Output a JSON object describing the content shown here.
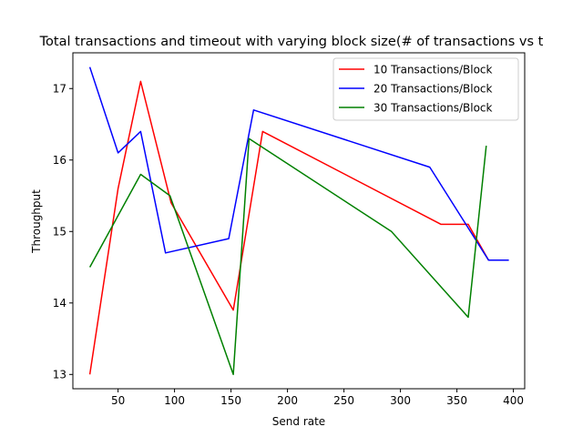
{
  "chart_data": {
    "type": "line",
    "title": "Total transactions and timeout with varying block size(# of transactions vs t",
    "xlabel": "Send rate",
    "ylabel": "Throughput",
    "xlim": [
      10,
      410
    ],
    "ylim": [
      12.8,
      17.5
    ],
    "xticks": [
      50,
      100,
      150,
      200,
      250,
      300,
      350,
      400
    ],
    "yticks": [
      13,
      14,
      15,
      16,
      17
    ],
    "grid": false,
    "legend_position": "upper-right",
    "series": [
      {
        "name": "10 Transactions/Block",
        "color": "#ff0000",
        "x": [
          25,
          50,
          70,
          97,
          152,
          178,
          336,
          360,
          378
        ],
        "y": [
          13.0,
          15.6,
          17.1,
          15.4,
          13.9,
          16.4,
          15.1,
          15.1,
          14.6
        ]
      },
      {
        "name": "20 Transactions/Block",
        "color": "#0000ff",
        "x": [
          25,
          50,
          70,
          92,
          148,
          170,
          326,
          378,
          396
        ],
        "y": [
          17.3,
          16.1,
          16.4,
          14.7,
          14.9,
          16.7,
          15.9,
          14.6,
          14.6
        ]
      },
      {
        "name": "30 Transactions/Block",
        "color": "#008000",
        "x": [
          25,
          70,
          96,
          152,
          166,
          292,
          360,
          376
        ],
        "y": [
          14.5,
          15.8,
          15.5,
          13.0,
          16.3,
          15.0,
          13.8,
          16.2
        ]
      }
    ]
  }
}
